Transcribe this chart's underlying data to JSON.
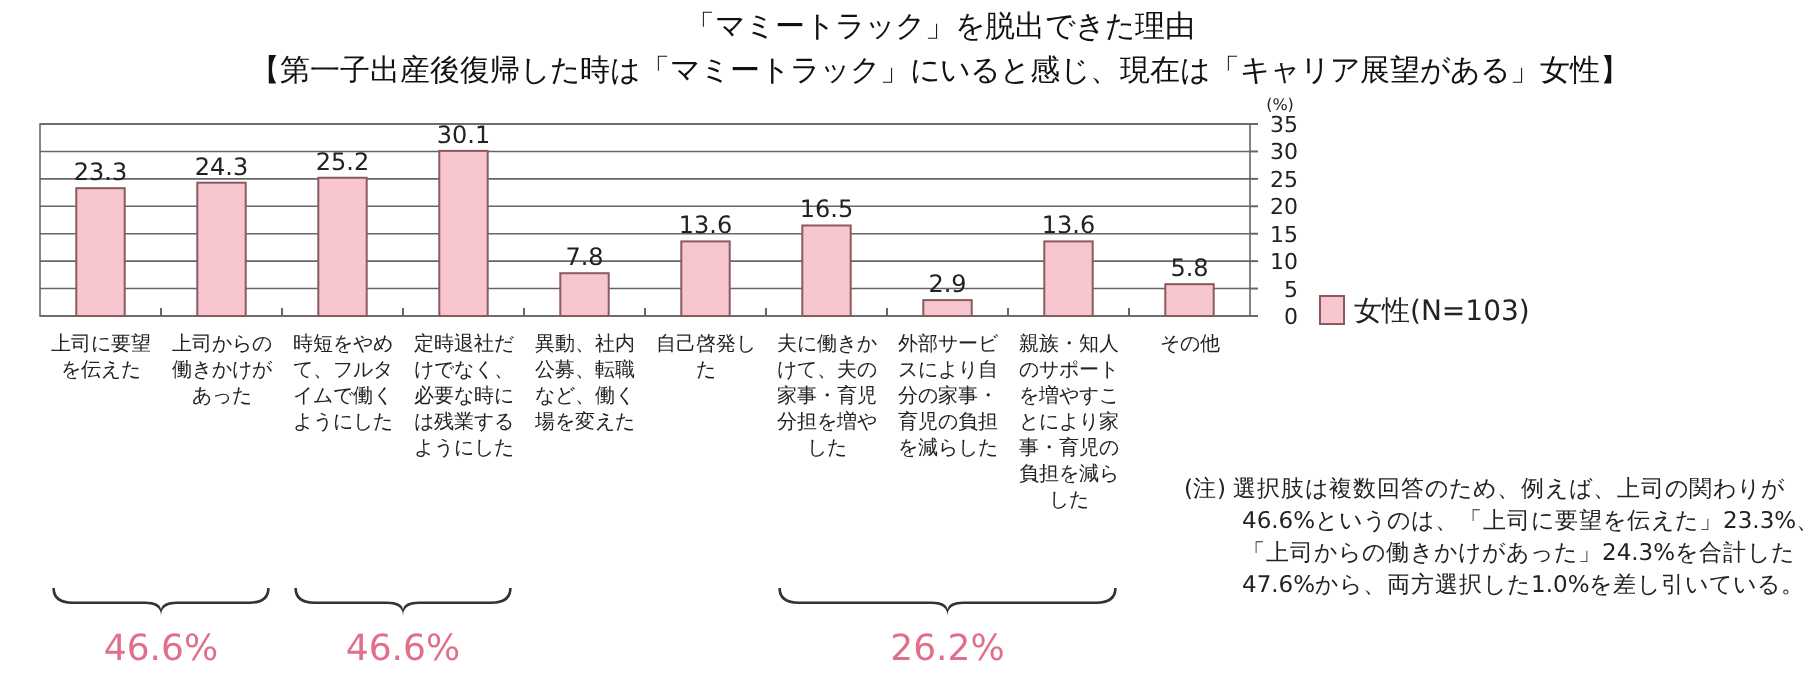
{
  "chart_data": {
    "type": "bar",
    "title": "「マミートラック」を脱出できた理由",
    "subtitle": "【第一子出産後復帰した時は「マミートラック」にいると感じ、現在は「キャリア展望がある」女性】",
    "ylabel": "(%)",
    "categories": [
      "上司に要望を伝えた",
      "上司からの働きかけがあった",
      "時短をやめて、フルタイムで働くようにした",
      "定時退社だけでなく、必要な時には残業するようにした",
      "異動、社内公募、転職など、働く場を変えた",
      "自己啓発した",
      "夫に働きかけて、夫の家事・育児分担を増やした",
      "外部サービスにより自分の家事・育児の負担を減らした",
      "親族・知人のサポートを増やすことにより家事・育児の負担を減らした",
      "その他"
    ],
    "series": [
      {
        "name": "女性(N=103)",
        "color": "#f7c6cf",
        "values": [
          23.3,
          24.3,
          25.2,
          30.1,
          7.8,
          13.6,
          16.5,
          2.9,
          13.6,
          5.8
        ]
      }
    ],
    "ylim": [
      0,
      35
    ],
    "yticks": [
      0,
      5,
      10,
      15,
      20,
      25,
      30,
      35
    ],
    "grid": "y",
    "legend": "right",
    "data_labels": true,
    "annotations": [
      "46.6%",
      "46.6%",
      "26.2%",
      "(注) 選択肢は複数回答のため、例えば、上司の関わりが46.6%というのは、「上司に要望を伝えた」23.3%、「上司からの働きかけがあった」24.3%を合計した47.6%から、両方選択した1.0%を差し引いている。"
    ]
  }
}
